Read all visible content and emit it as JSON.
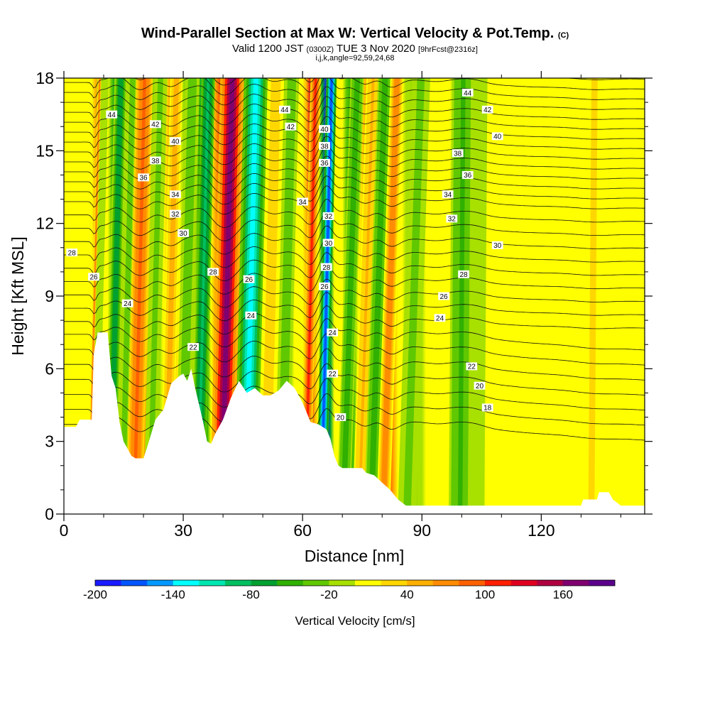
{
  "chart_data": {
    "type": "heatmap",
    "title": "Wind-Parallel Section at Max W: Vertical Velocity & Pot.Temp.",
    "title_unit": "(C)",
    "subtitle_main": "Valid 1200 JST",
    "subtitle_utc": "(0300Z)",
    "subtitle_date": "TUE 3 Nov 2020",
    "subtitle_fcst": "[9hrFcst@2316z]",
    "info": "i,j,k,angle=92,59,24,68",
    "xlabel": "Distance [nm]",
    "ylabel": "Height [Kft MSL]",
    "xlim": [
      0,
      146
    ],
    "ylim": [
      0,
      18
    ],
    "x_ticks": [
      "0",
      "30",
      "60",
      "90",
      "120"
    ],
    "y_ticks": [
      "0",
      "3",
      "6",
      "9",
      "12",
      "15",
      "18"
    ],
    "colorbar": {
      "label": "Vertical Velocity [cm/s]",
      "tick_labels": [
        "-200",
        "-140",
        "-80",
        "-20",
        "40",
        "100",
        "160"
      ],
      "levels": [
        -200,
        -180,
        -160,
        -140,
        -120,
        -100,
        -80,
        -60,
        -40,
        -20,
        0,
        20,
        40,
        60,
        80,
        100,
        120,
        140,
        160,
        180
      ],
      "colors": [
        "#1a1aff",
        "#0055ff",
        "#0099ff",
        "#00ffff",
        "#00e6b0",
        "#00c060",
        "#00a030",
        "#30b000",
        "#60c800",
        "#a8e000",
        "#ffff00",
        "#ffd700",
        "#ffb000",
        "#ff8c00",
        "#ff6000",
        "#ff2000",
        "#e00020",
        "#b00040",
        "#800070",
        "#5a008c"
      ]
    },
    "vertical_velocity_bands": [
      {
        "x": 7.7,
        "w": 0.35,
        "v": 80
      },
      {
        "x": 9,
        "w": 0.7,
        "v": -20
      },
      {
        "x": 13,
        "w": 1.2,
        "v": -80
      },
      {
        "x": 16,
        "w": 1.3,
        "v": -30
      },
      {
        "x": 19,
        "w": 1.6,
        "v": 100
      },
      {
        "x": 23,
        "w": 1.3,
        "v": -30
      },
      {
        "x": 27,
        "w": 1.2,
        "v": 60
      },
      {
        "x": 31,
        "w": 1.4,
        "v": -40
      },
      {
        "x": 35,
        "w": 1.3,
        "v": -100
      },
      {
        "x": 41,
        "w": 2.3,
        "v": 180
      },
      {
        "x": 47,
        "w": 2.3,
        "v": -140
      },
      {
        "x": 52,
        "w": 1.6,
        "v": 40
      },
      {
        "x": 56,
        "w": 1.4,
        "v": -40
      },
      {
        "x": 62,
        "w": 1.0,
        "v": 120
      },
      {
        "x": 66,
        "w": 1.0,
        "v": -190
      },
      {
        "x": 72,
        "w": 1.3,
        "v": -60
      },
      {
        "x": 76,
        "w": 1.3,
        "v": 50
      },
      {
        "x": 79,
        "w": 1.4,
        "v": -60
      },
      {
        "x": 82,
        "w": 1.3,
        "v": 80
      },
      {
        "x": 88,
        "w": 1.8,
        "v": -30
      },
      {
        "x": 100,
        "w": 2.2,
        "v": -50
      },
      {
        "x": 104,
        "w": 1.6,
        "v": -20
      },
      {
        "x": 118,
        "w": 4.0,
        "v": 15
      },
      {
        "x": 133,
        "w": 3.0,
        "v": 25
      }
    ],
    "terrain": [
      [
        0,
        3.6
      ],
      [
        3,
        3.6
      ],
      [
        4,
        3.9
      ],
      [
        7,
        3.9
      ],
      [
        7.5,
        6.6
      ],
      [
        8.5,
        7.5
      ],
      [
        11,
        7.5
      ],
      [
        12,
        5.7
      ],
      [
        13,
        5.2
      ],
      [
        14,
        3.8
      ],
      [
        15,
        3.0
      ],
      [
        17,
        2.4
      ],
      [
        18,
        2.3
      ],
      [
        20,
        2.3
      ],
      [
        21,
        2.8
      ],
      [
        23,
        3.9
      ],
      [
        25,
        4.3
      ],
      [
        27,
        5.4
      ],
      [
        29,
        5.7
      ],
      [
        30,
        5.8
      ],
      [
        31,
        5.5
      ],
      [
        32,
        6.0
      ],
      [
        33,
        5.2
      ],
      [
        35,
        3.8
      ],
      [
        36,
        3.0
      ],
      [
        37,
        2.9
      ],
      [
        38,
        3.3
      ],
      [
        40,
        3.9
      ],
      [
        42,
        4.8
      ],
      [
        44,
        5.5
      ],
      [
        46,
        5.0
      ],
      [
        48,
        5.2
      ],
      [
        50,
        4.9
      ],
      [
        52,
        4.9
      ],
      [
        54,
        5.1
      ],
      [
        56,
        5.5
      ],
      [
        58,
        5.2
      ],
      [
        60,
        4.6
      ],
      [
        62,
        3.8
      ],
      [
        64,
        3.7
      ],
      [
        66,
        3.5
      ],
      [
        67,
        3.1
      ],
      [
        68,
        2.4
      ],
      [
        69,
        2.0
      ],
      [
        70,
        1.9
      ],
      [
        75,
        1.9
      ],
      [
        76,
        1.7
      ],
      [
        78,
        1.6
      ],
      [
        80,
        1.3
      ],
      [
        82,
        1.0
      ],
      [
        84,
        0.6
      ],
      [
        86,
        0.35
      ],
      [
        88,
        0.35
      ],
      [
        90,
        0.35
      ],
      [
        94,
        0.35
      ],
      [
        100,
        0.35
      ],
      [
        120,
        0.35
      ],
      [
        130,
        0.35
      ],
      [
        130.5,
        0.6
      ],
      [
        134,
        0.6
      ],
      [
        134.5,
        0.9
      ],
      [
        137,
        0.9
      ],
      [
        138,
        0.6
      ],
      [
        140,
        0.35
      ],
      [
        146,
        0.35
      ]
    ],
    "theta_contour_levels": [
      18,
      19,
      20,
      21,
      22,
      23,
      24,
      25,
      26,
      27,
      28,
      29,
      30,
      31,
      32,
      33,
      34,
      35,
      36,
      37,
      38,
      39,
      40,
      41,
      42,
      43,
      44,
      45,
      46,
      47,
      48
    ]
  },
  "contour_labels": [
    {
      "text": "44",
      "x": 12,
      "y": 16.5
    },
    {
      "text": "42",
      "x": 23,
      "y": 16.1
    },
    {
      "text": "40",
      "x": 28,
      "y": 15.4
    },
    {
      "text": "38",
      "x": 23,
      "y": 14.6
    },
    {
      "text": "36",
      "x": 20,
      "y": 13.9
    },
    {
      "text": "34",
      "x": 28,
      "y": 13.2
    },
    {
      "text": "32",
      "x": 28,
      "y": 12.4
    },
    {
      "text": "30",
      "x": 30,
      "y": 11.6
    },
    {
      "text": "28",
      "x": 2,
      "y": 10.8
    },
    {
      "text": "26",
      "x": 7.5,
      "y": 9.8
    },
    {
      "text": "24",
      "x": 16,
      "y": 8.7
    },
    {
      "text": "22",
      "x": 32.5,
      "y": 6.9
    },
    {
      "text": "28",
      "x": 37.5,
      "y": 10.0
    },
    {
      "text": "26",
      "x": 46.5,
      "y": 9.7
    },
    {
      "text": "24",
      "x": 47,
      "y": 8.2
    },
    {
      "text": "44",
      "x": 55.5,
      "y": 16.7
    },
    {
      "text": "42",
      "x": 57,
      "y": 16.0
    },
    {
      "text": "40",
      "x": 65.5,
      "y": 15.9
    },
    {
      "text": "38",
      "x": 65.5,
      "y": 15.2
    },
    {
      "text": "36",
      "x": 65.5,
      "y": 14.5
    },
    {
      "text": "34",
      "x": 60,
      "y": 12.9
    },
    {
      "text": "32",
      "x": 66.5,
      "y": 12.3
    },
    {
      "text": "30",
      "x": 66.5,
      "y": 11.2
    },
    {
      "text": "28",
      "x": 66,
      "y": 10.2
    },
    {
      "text": "26",
      "x": 65.5,
      "y": 9.4
    },
    {
      "text": "24",
      "x": 67.5,
      "y": 7.5
    },
    {
      "text": "22",
      "x": 67.5,
      "y": 5.8
    },
    {
      "text": "20",
      "x": 69.5,
      "y": 4.0
    },
    {
      "text": "44",
      "x": 101.5,
      "y": 17.4
    },
    {
      "text": "42",
      "x": 106.5,
      "y": 16.7
    },
    {
      "text": "40",
      "x": 109,
      "y": 15.6
    },
    {
      "text": "38",
      "x": 99,
      "y": 14.9
    },
    {
      "text": "36",
      "x": 101.5,
      "y": 14.0
    },
    {
      "text": "34",
      "x": 96.5,
      "y": 13.2
    },
    {
      "text": "32",
      "x": 97.5,
      "y": 12.2
    },
    {
      "text": "30",
      "x": 109,
      "y": 11.1
    },
    {
      "text": "28",
      "x": 100.5,
      "y": 9.9
    },
    {
      "text": "26",
      "x": 95.5,
      "y": 9.0
    },
    {
      "text": "24",
      "x": 94.5,
      "y": 8.1
    },
    {
      "text": "22",
      "x": 102.5,
      "y": 6.1
    },
    {
      "text": "20",
      "x": 104.5,
      "y": 5.3
    },
    {
      "text": "18",
      "x": 106.5,
      "y": 4.4
    }
  ]
}
